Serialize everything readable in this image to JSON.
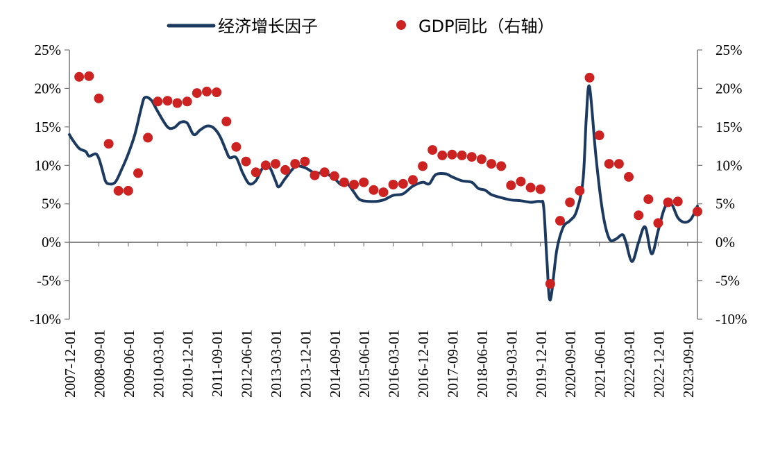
{
  "chart_data": {
    "type": "line",
    "legend": {
      "placement": "top-center",
      "line_label": "经济增长因子",
      "scatter_label": "GDP同比（右轴）"
    },
    "colors": {
      "line": "#1c3a60",
      "scatter": "#cc2222",
      "axis": "#777777"
    },
    "y_left": {
      "ylim": [
        -10,
        25
      ],
      "ticks": [
        "25%",
        "20%",
        "15%",
        "10%",
        "5%",
        "0%",
        "-5%",
        "-10%"
      ],
      "tick_values": [
        25,
        20,
        15,
        10,
        5,
        0,
        -5,
        -10
      ]
    },
    "y_right": {
      "ylim": [
        -10,
        25
      ],
      "ticks": [
        "25%",
        "20%",
        "15%",
        "10%",
        "5%",
        "0%",
        "-5%",
        "-10%"
      ],
      "tick_values": [
        25,
        20,
        15,
        10,
        5,
        0,
        -5,
        -10
      ]
    },
    "x_range": [
      "2007-12",
      "2023-12"
    ],
    "x_tick_labels": [
      {
        "label": "2007-12-01",
        "t": "2007-12"
      },
      {
        "label": "2008-09-01",
        "t": "2008-09"
      },
      {
        "label": "2009-06-01",
        "t": "2009-06"
      },
      {
        "label": "2010-03-01",
        "t": "2010-03"
      },
      {
        "label": "2010-12-01",
        "t": "2010-12"
      },
      {
        "label": "2011-09-01",
        "t": "2011-09"
      },
      {
        "label": "2012-06-01",
        "t": "2012-06"
      },
      {
        "label": "2013-03-01",
        "t": "2013-03"
      },
      {
        "label": "2013-12-01",
        "t": "2013-12"
      },
      {
        "label": "2014-09-01",
        "t": "2014-09"
      },
      {
        "label": "2015-06-01",
        "t": "2015-06"
      },
      {
        "label": "2016-03-01",
        "t": "2016-03"
      },
      {
        "label": "2016-12-01",
        "t": "2016-12"
      },
      {
        "label": "2017-09-01",
        "t": "2017-09"
      },
      {
        "label": "2018-06-01",
        "t": "2018-06"
      },
      {
        "label": "2019-03-01",
        "t": "2019-03"
      },
      {
        "label": "2019-12-01",
        "t": "2019-12"
      },
      {
        "label": "2020-09-01",
        "t": "2020-09"
      },
      {
        "label": "2021-06-01",
        "t": "2021-06"
      },
      {
        "label": "2022-03-01",
        "t": "2022-03"
      },
      {
        "label": "2022-12-01",
        "t": "2022-12"
      },
      {
        "label": "2023-09-01",
        "t": "2023-09"
      }
    ],
    "series": [
      {
        "name": "经济增长因子",
        "kind": "line",
        "axis": "left",
        "points": [
          [
            "2007-12",
            14.0
          ],
          [
            "2008-01",
            13.3
          ],
          [
            "2008-03",
            12.2
          ],
          [
            "2008-05",
            11.8
          ],
          [
            "2008-06",
            11.2
          ],
          [
            "2008-08",
            11.5
          ],
          [
            "2008-09",
            10.9
          ],
          [
            "2008-10",
            9.5
          ],
          [
            "2008-11",
            8.0
          ],
          [
            "2008-12",
            7.6
          ],
          [
            "2009-02",
            7.8
          ],
          [
            "2009-04",
            9.5
          ],
          [
            "2009-06",
            11.5
          ],
          [
            "2009-08",
            14.0
          ],
          [
            "2009-10",
            17.5
          ],
          [
            "2009-11",
            18.8
          ],
          [
            "2010-01",
            18.5
          ],
          [
            "2010-03",
            17.0
          ],
          [
            "2010-06",
            15.0
          ],
          [
            "2010-08",
            14.9
          ],
          [
            "2010-10",
            15.6
          ],
          [
            "2010-12",
            15.5
          ],
          [
            "2011-02",
            14.0
          ],
          [
            "2011-04",
            14.6
          ],
          [
            "2011-06",
            15.1
          ],
          [
            "2011-08",
            14.9
          ],
          [
            "2011-10",
            13.8
          ],
          [
            "2011-12",
            11.8
          ],
          [
            "2012-01",
            11.0
          ],
          [
            "2012-03",
            11.0
          ],
          [
            "2012-05",
            9.0
          ],
          [
            "2012-07",
            7.6
          ],
          [
            "2012-09",
            8.0
          ],
          [
            "2012-11",
            9.6
          ],
          [
            "2013-01",
            9.9
          ],
          [
            "2013-03",
            8.0
          ],
          [
            "2013-04",
            7.2
          ],
          [
            "2013-06",
            8.3
          ],
          [
            "2013-09",
            9.8
          ],
          [
            "2013-12",
            9.7
          ],
          [
            "2014-03",
            9.0
          ],
          [
            "2014-06",
            9.0
          ],
          [
            "2014-09",
            8.3
          ],
          [
            "2014-11",
            7.5
          ],
          [
            "2015-01",
            7.6
          ],
          [
            "2015-03",
            6.5
          ],
          [
            "2015-05",
            5.5
          ],
          [
            "2015-09",
            5.3
          ],
          [
            "2015-12",
            5.5
          ],
          [
            "2016-03",
            6.1
          ],
          [
            "2016-06",
            6.3
          ],
          [
            "2016-09",
            7.3
          ],
          [
            "2016-12",
            7.8
          ],
          [
            "2017-02",
            7.6
          ],
          [
            "2017-04",
            8.8
          ],
          [
            "2017-07",
            8.9
          ],
          [
            "2017-09",
            8.5
          ],
          [
            "2017-12",
            8.0
          ],
          [
            "2018-03",
            7.8
          ],
          [
            "2018-05",
            7.0
          ],
          [
            "2018-07",
            6.8
          ],
          [
            "2018-09",
            6.2
          ],
          [
            "2018-12",
            5.8
          ],
          [
            "2019-03",
            5.5
          ],
          [
            "2019-06",
            5.4
          ],
          [
            "2019-09",
            5.2
          ],
          [
            "2019-12",
            5.3
          ],
          [
            "2020-01",
            4.5
          ],
          [
            "2020-02",
            -2.5
          ],
          [
            "2020-03",
            -7.5
          ],
          [
            "2020-05",
            -1.0
          ],
          [
            "2020-07",
            2.0
          ],
          [
            "2020-09",
            2.8
          ],
          [
            "2020-11",
            4.0
          ],
          [
            "2021-01",
            8.0
          ],
          [
            "2021-02",
            16.0
          ],
          [
            "2021-03",
            20.2
          ],
          [
            "2021-05",
            11.0
          ],
          [
            "2021-07",
            4.0
          ],
          [
            "2021-09",
            0.5
          ],
          [
            "2021-11",
            0.4
          ],
          [
            "2022-01",
            1.0
          ],
          [
            "2022-02",
            0.2
          ],
          [
            "2022-04",
            -2.5
          ],
          [
            "2022-06",
            0.0
          ],
          [
            "2022-08",
            2.0
          ],
          [
            "2022-10",
            -1.5
          ],
          [
            "2022-12",
            1.5
          ],
          [
            "2023-02",
            4.5
          ],
          [
            "2023-04",
            5.0
          ],
          [
            "2023-06",
            3.2
          ],
          [
            "2023-08",
            2.6
          ],
          [
            "2023-10",
            3.0
          ],
          [
            "2023-12",
            4.7
          ]
        ]
      },
      {
        "name": "GDP同比（右轴）",
        "kind": "scatter",
        "axis": "right",
        "points": [
          [
            "2008-03",
            21.5
          ],
          [
            "2008-06",
            21.6
          ],
          [
            "2008-09",
            18.7
          ],
          [
            "2008-12",
            12.8
          ],
          [
            "2009-03",
            6.7
          ],
          [
            "2009-06",
            6.7
          ],
          [
            "2009-09",
            9.0
          ],
          [
            "2009-12",
            13.6
          ],
          [
            "2010-03",
            18.3
          ],
          [
            "2010-06",
            18.4
          ],
          [
            "2010-09",
            18.1
          ],
          [
            "2010-12",
            18.3
          ],
          [
            "2011-03",
            19.4
          ],
          [
            "2011-06",
            19.6
          ],
          [
            "2011-09",
            19.5
          ],
          [
            "2011-12",
            15.7
          ],
          [
            "2012-03",
            12.4
          ],
          [
            "2012-06",
            10.5
          ],
          [
            "2012-09",
            9.1
          ],
          [
            "2012-12",
            10.0
          ],
          [
            "2013-03",
            10.2
          ],
          [
            "2013-06",
            9.4
          ],
          [
            "2013-09",
            10.2
          ],
          [
            "2013-12",
            10.5
          ],
          [
            "2014-03",
            8.7
          ],
          [
            "2014-06",
            9.1
          ],
          [
            "2014-09",
            8.6
          ],
          [
            "2014-12",
            7.8
          ],
          [
            "2015-03",
            7.5
          ],
          [
            "2015-06",
            7.8
          ],
          [
            "2015-09",
            6.8
          ],
          [
            "2015-12",
            6.5
          ],
          [
            "2016-03",
            7.5
          ],
          [
            "2016-06",
            7.6
          ],
          [
            "2016-09",
            8.1
          ],
          [
            "2016-12",
            9.9
          ],
          [
            "2017-03",
            12.0
          ],
          [
            "2017-06",
            11.3
          ],
          [
            "2017-09",
            11.4
          ],
          [
            "2017-12",
            11.3
          ],
          [
            "2018-03",
            11.1
          ],
          [
            "2018-06",
            10.8
          ],
          [
            "2018-09",
            10.2
          ],
          [
            "2018-12",
            9.9
          ],
          [
            "2019-03",
            7.4
          ],
          [
            "2019-06",
            7.9
          ],
          [
            "2019-09",
            7.1
          ],
          [
            "2019-12",
            6.9
          ],
          [
            "2020-03",
            -5.4
          ],
          [
            "2020-06",
            2.8
          ],
          [
            "2020-09",
            5.2
          ],
          [
            "2020-12",
            6.7
          ],
          [
            "2021-03",
            21.4
          ],
          [
            "2021-06",
            13.9
          ],
          [
            "2021-09",
            10.2
          ],
          [
            "2021-12",
            10.2
          ],
          [
            "2022-03",
            8.5
          ],
          [
            "2022-06",
            3.5
          ],
          [
            "2022-09",
            5.6
          ],
          [
            "2022-12",
            2.5
          ],
          [
            "2023-03",
            5.2
          ],
          [
            "2023-06",
            5.3
          ],
          [
            "2023-12",
            4.0
          ]
        ]
      }
    ]
  }
}
